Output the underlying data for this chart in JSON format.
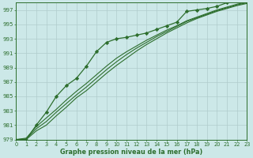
{
  "xlabel": "Graphe pression niveau de la mer (hPa)",
  "xlim": [
    0,
    23
  ],
  "ylim": [
    979,
    998
  ],
  "yticks": [
    979,
    981,
    983,
    985,
    987,
    989,
    991,
    993,
    995,
    997
  ],
  "xticks": [
    0,
    1,
    2,
    3,
    4,
    5,
    6,
    7,
    8,
    9,
    10,
    11,
    12,
    13,
    14,
    15,
    16,
    17,
    18,
    19,
    20,
    21,
    22,
    23
  ],
  "background_color": "#cce8e8",
  "grid_color": "#b0cccc",
  "line_color": "#2d6e2d",
  "series_marked": [
    979.0,
    979.0,
    981.0,
    982.8,
    985.0,
    986.5,
    987.5,
    989.2,
    991.2,
    992.5,
    993.0,
    993.2,
    993.5,
    993.8,
    994.3,
    994.8,
    995.3,
    996.8,
    997.0,
    997.2,
    997.5,
    998.0,
    998.3,
    998.5
  ],
  "series_linear1": [
    979.0,
    979.2,
    980.8,
    982.0,
    983.2,
    984.5,
    985.7,
    986.8,
    988.0,
    989.2,
    990.3,
    991.2,
    992.0,
    992.8,
    993.5,
    994.2,
    994.8,
    995.5,
    996.0,
    996.5,
    997.0,
    997.4,
    997.8,
    998.1
  ],
  "series_linear2": [
    979.0,
    979.1,
    980.5,
    981.5,
    982.8,
    984.0,
    985.2,
    986.3,
    987.5,
    988.7,
    989.8,
    990.8,
    991.7,
    992.5,
    993.3,
    994.0,
    994.7,
    995.4,
    995.9,
    996.4,
    996.9,
    997.3,
    997.7,
    998.0
  ],
  "series_linear3": [
    979.0,
    979.0,
    980.2,
    981.0,
    982.3,
    983.5,
    984.8,
    985.8,
    987.0,
    988.2,
    989.3,
    990.3,
    991.3,
    992.2,
    993.0,
    993.8,
    994.5,
    995.2,
    995.8,
    996.3,
    996.8,
    997.2,
    997.6,
    997.9
  ]
}
